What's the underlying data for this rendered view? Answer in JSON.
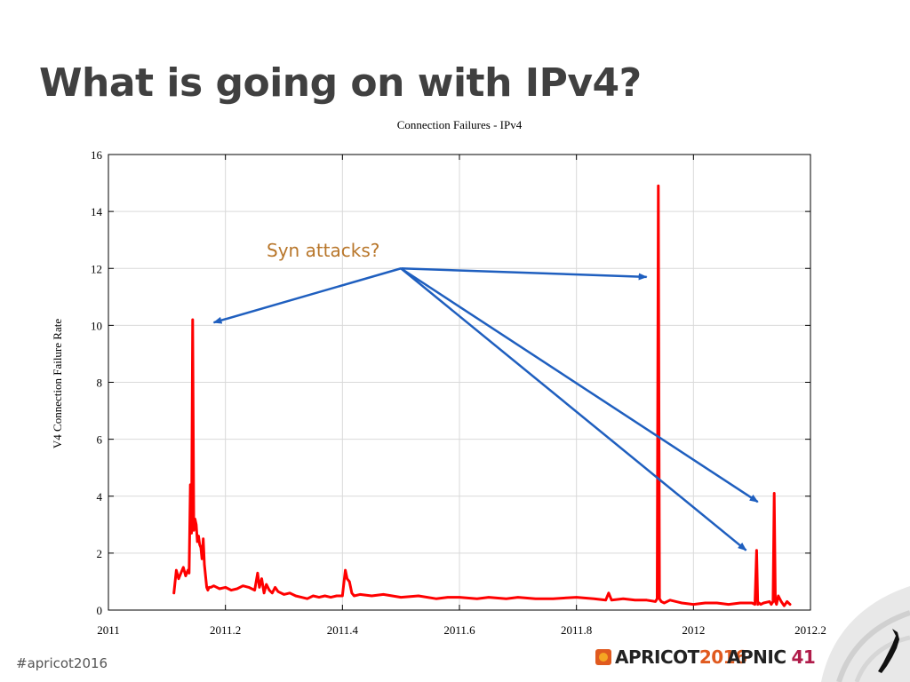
{
  "slide": {
    "title": "What is going on with IPv4?",
    "hashtag": "#apricot2016",
    "logos": {
      "apricot_text": "APRICOT",
      "apricot_year": "2016",
      "apnic_text": "APNIC",
      "apnic_number": "41"
    }
  },
  "colors": {
    "series": "#ff0000",
    "arrow": "#1f5fbf",
    "annotation": "#b8762a",
    "title": "#404040"
  },
  "chart_data": {
    "type": "line",
    "title": "Connection Failures - IPv4",
    "xlabel": "",
    "ylabel": "V4 Connection Failure Rate",
    "xlim": [
      2011,
      2012.2
    ],
    "ylim": [
      0,
      16
    ],
    "xticks": [
      "2011",
      "2011.2",
      "2011.4",
      "2011.6",
      "2011.8",
      "2012",
      "2012.2"
    ],
    "yticks": [
      "0",
      "2",
      "4",
      "6",
      "8",
      "10",
      "12",
      "14",
      "16"
    ],
    "grid": true,
    "annotation": {
      "text": "Syn attacks?",
      "anchor": [
        2011.5,
        12.0
      ],
      "targets": [
        [
          2011.18,
          10.1
        ],
        [
          2011.92,
          11.7
        ],
        [
          2012.09,
          2.1
        ],
        [
          2012.11,
          3.8
        ]
      ]
    },
    "series": [
      {
        "name": "",
        "x": [
          2011.112,
          2011.116,
          2011.12,
          2011.124,
          2011.128,
          2011.132,
          2011.136,
          2011.138,
          2011.14,
          2011.142,
          2011.144,
          2011.146,
          2011.148,
          2011.15,
          2011.152,
          2011.154,
          2011.156,
          2011.158,
          2011.16,
          2011.162,
          2011.164,
          2011.166,
          2011.168,
          2011.17,
          2011.172,
          2011.175,
          2011.18,
          2011.19,
          2011.2,
          2011.21,
          2011.22,
          2011.23,
          2011.24,
          2011.25,
          2011.255,
          2011.258,
          2011.262,
          2011.266,
          2011.27,
          2011.275,
          2011.28,
          2011.285,
          2011.29,
          2011.3,
          2011.31,
          2011.32,
          2011.33,
          2011.34,
          2011.35,
          2011.36,
          2011.37,
          2011.38,
          2011.39,
          2011.4,
          2011.405,
          2011.408,
          2011.412,
          2011.416,
          2011.42,
          2011.43,
          2011.45,
          2011.47,
          2011.5,
          2011.53,
          2011.56,
          2011.58,
          2011.6,
          2011.63,
          2011.65,
          2011.68,
          2011.7,
          2011.73,
          2011.76,
          2011.8,
          2011.83,
          2011.85,
          2011.855,
          2011.86,
          2011.88,
          2011.9,
          2011.92,
          2011.935,
          2011.938,
          2011.94,
          2011.942,
          2011.945,
          2011.95,
          2011.96,
          2011.98,
          2012.0,
          2012.02,
          2012.04,
          2012.06,
          2012.08,
          2012.1,
          2012.105,
          2012.108,
          2012.11,
          2012.112,
          2012.115,
          2012.12,
          2012.13,
          2012.133,
          2012.136,
          2012.138,
          2012.14,
          2012.142,
          2012.145,
          2012.15,
          2012.155,
          2012.16,
          2012.165
        ],
        "values": [
          0.6,
          1.4,
          1.1,
          1.3,
          1.5,
          1.2,
          1.4,
          1.3,
          4.4,
          2.7,
          10.2,
          2.8,
          3.2,
          3.0,
          2.4,
          2.6,
          2.3,
          2.2,
          1.8,
          2.5,
          1.6,
          1.2,
          0.8,
          0.7,
          0.8,
          0.8,
          0.85,
          0.75,
          0.8,
          0.7,
          0.75,
          0.85,
          0.8,
          0.7,
          1.3,
          0.8,
          1.1,
          0.6,
          0.9,
          0.7,
          0.6,
          0.8,
          0.65,
          0.55,
          0.6,
          0.5,
          0.45,
          0.4,
          0.5,
          0.45,
          0.5,
          0.45,
          0.5,
          0.5,
          1.4,
          1.1,
          1.0,
          0.6,
          0.5,
          0.55,
          0.5,
          0.55,
          0.45,
          0.5,
          0.4,
          0.45,
          0.45,
          0.4,
          0.45,
          0.4,
          0.45,
          0.4,
          0.4,
          0.45,
          0.4,
          0.35,
          0.6,
          0.35,
          0.4,
          0.35,
          0.35,
          0.3,
          0.4,
          14.9,
          0.4,
          0.3,
          0.25,
          0.35,
          0.25,
          0.2,
          0.25,
          0.25,
          0.2,
          0.25,
          0.25,
          0.2,
          2.1,
          0.2,
          0.25,
          0.2,
          0.25,
          0.3,
          0.2,
          0.3,
          4.1,
          0.3,
          0.2,
          0.5,
          0.3,
          0.15,
          0.3,
          0.2
        ]
      }
    ]
  }
}
